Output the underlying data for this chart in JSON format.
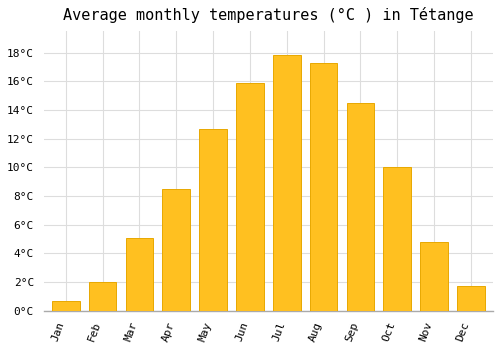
{
  "title": "Average monthly temperatures (°C ) in Tétange",
  "months": [
    "Jan",
    "Feb",
    "Mar",
    "Apr",
    "May",
    "Jun",
    "Jul",
    "Aug",
    "Sep",
    "Oct",
    "Nov",
    "Dec"
  ],
  "values": [
    0.7,
    2.0,
    5.1,
    8.5,
    12.7,
    15.9,
    17.8,
    17.3,
    14.5,
    10.0,
    4.8,
    1.7
  ],
  "bar_color": "#FFC020",
  "bar_edge_color": "#E8A800",
  "background_color": "#ffffff",
  "plot_bg_color": "#ffffff",
  "grid_color": "#dddddd",
  "yticks": [
    0,
    2,
    4,
    6,
    8,
    10,
    12,
    14,
    16,
    18
  ],
  "ylim": [
    0,
    19.5
  ],
  "title_fontsize": 11,
  "tick_fontsize": 8,
  "font_family": "monospace"
}
